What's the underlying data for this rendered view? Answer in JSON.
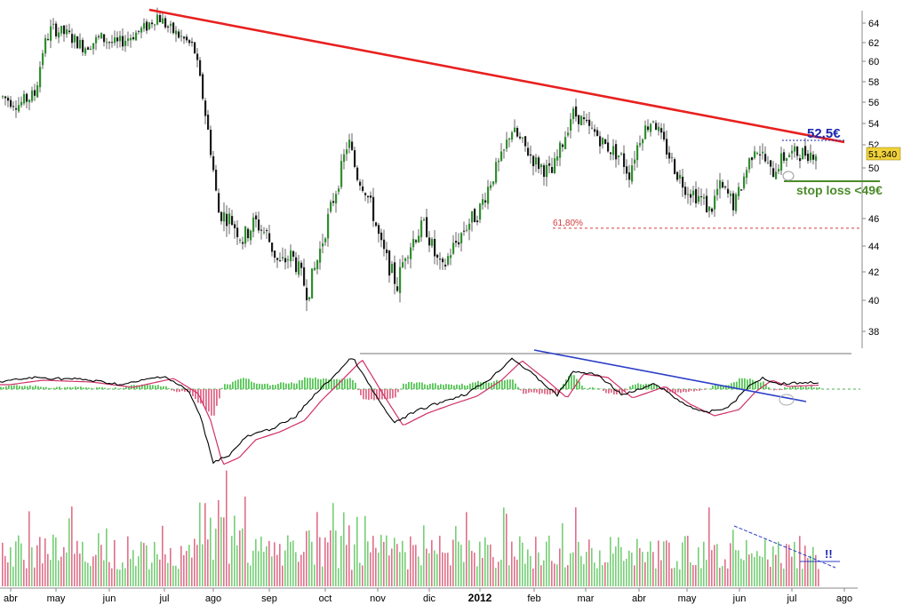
{
  "chart_data": {
    "type": "candlestick",
    "title": "",
    "price_axis": {
      "ticks": [
        38,
        40,
        42,
        44,
        46,
        50,
        52,
        54,
        56,
        58,
        60,
        62,
        64
      ],
      "range": [
        37,
        65
      ]
    },
    "x_axis": {
      "labels": [
        "abr",
        "may",
        "jun",
        "jul",
        "ago",
        "sep",
        "oct",
        "nov",
        "dic",
        "2012",
        "feb",
        "mar",
        "abr",
        "may",
        "jun",
        "jul",
        "ago"
      ],
      "bold_label": "2012"
    },
    "last_price": "51,340",
    "annotations": {
      "target": "52,5€",
      "stop_loss": "stop loss <49€",
      "fib_label": "61,80%",
      "fib_level": 45.3,
      "volume_note": "!!"
    },
    "colors": {
      "up": "#2f8f2f",
      "down": "#b0223a",
      "trendline": "#e8201f",
      "target": "#1a26b0",
      "stop": "#4b8a2a",
      "fib": "#d23b3b",
      "macd": "#000000",
      "signal": "#d0306a",
      "hist_up": "#58c558",
      "hist_down": "#e06b8a",
      "vol_up": "#76cf76",
      "vol_down": "#e0708a",
      "badge": "#f0d23a"
    },
    "price_anchors": [
      [
        0,
        56.5
      ],
      [
        0.02,
        55.8
      ],
      [
        0.04,
        56.8
      ],
      [
        0.05,
        61.5
      ],
      [
        0.06,
        63.5
      ],
      [
        0.08,
        62.8
      ],
      [
        0.1,
        61.5
      ],
      [
        0.12,
        62.5
      ],
      [
        0.14,
        61.8
      ],
      [
        0.16,
        62.8
      ],
      [
        0.175,
        63.5
      ],
      [
        0.19,
        64.8
      ],
      [
        0.205,
        63.4
      ],
      [
        0.22,
        62.5
      ],
      [
        0.235,
        61.5
      ],
      [
        0.245,
        57
      ],
      [
        0.255,
        52
      ],
      [
        0.265,
        46.5
      ],
      [
        0.28,
        46
      ],
      [
        0.295,
        44.5
      ],
      [
        0.31,
        45.8
      ],
      [
        0.325,
        44.8
      ],
      [
        0.34,
        42.5
      ],
      [
        0.355,
        43.3
      ],
      [
        0.365,
        42
      ],
      [
        0.375,
        40.5
      ],
      [
        0.385,
        42.5
      ],
      [
        0.4,
        46
      ],
      [
        0.415,
        49.5
      ],
      [
        0.425,
        52.5
      ],
      [
        0.435,
        49.5
      ],
      [
        0.445,
        48.5
      ],
      [
        0.455,
        46.5
      ],
      [
        0.465,
        44
      ],
      [
        0.475,
        42.5
      ],
      [
        0.485,
        41
      ],
      [
        0.495,
        43.5
      ],
      [
        0.51,
        45
      ],
      [
        0.52,
        45.5
      ],
      [
        0.53,
        43.5
      ],
      [
        0.54,
        42
      ],
      [
        0.55,
        43.5
      ],
      [
        0.56,
        44.5
      ],
      [
        0.57,
        45.5
      ],
      [
        0.585,
        46.5
      ],
      [
        0.6,
        49
      ],
      [
        0.615,
        51
      ],
      [
        0.625,
        53.5
      ],
      [
        0.635,
        52.5
      ],
      [
        0.645,
        51.5
      ],
      [
        0.655,
        50.5
      ],
      [
        0.665,
        50
      ],
      [
        0.675,
        49.5
      ],
      [
        0.69,
        52.5
      ],
      [
        0.7,
        55
      ],
      [
        0.71,
        54.5
      ],
      [
        0.72,
        53.5
      ],
      [
        0.73,
        53
      ],
      [
        0.74,
        52
      ],
      [
        0.75,
        51.5
      ],
      [
        0.76,
        51
      ],
      [
        0.77,
        49.5
      ],
      [
        0.785,
        53
      ],
      [
        0.8,
        54.5
      ],
      [
        0.81,
        52.5
      ],
      [
        0.82,
        51
      ],
      [
        0.83,
        49.5
      ],
      [
        0.84,
        48.5
      ],
      [
        0.85,
        48
      ],
      [
        0.86,
        47.5
      ],
      [
        0.87,
        46.5
      ],
      [
        0.88,
        48.5
      ],
      [
        0.89,
        48
      ],
      [
        0.9,
        47
      ],
      [
        0.915,
        50
      ],
      [
        0.925,
        52
      ],
      [
        0.935,
        51
      ],
      [
        0.945,
        49.5
      ],
      [
        0.955,
        50.5
      ],
      [
        0.965,
        51.2
      ],
      [
        1.0,
        51.34
      ]
    ]
  }
}
